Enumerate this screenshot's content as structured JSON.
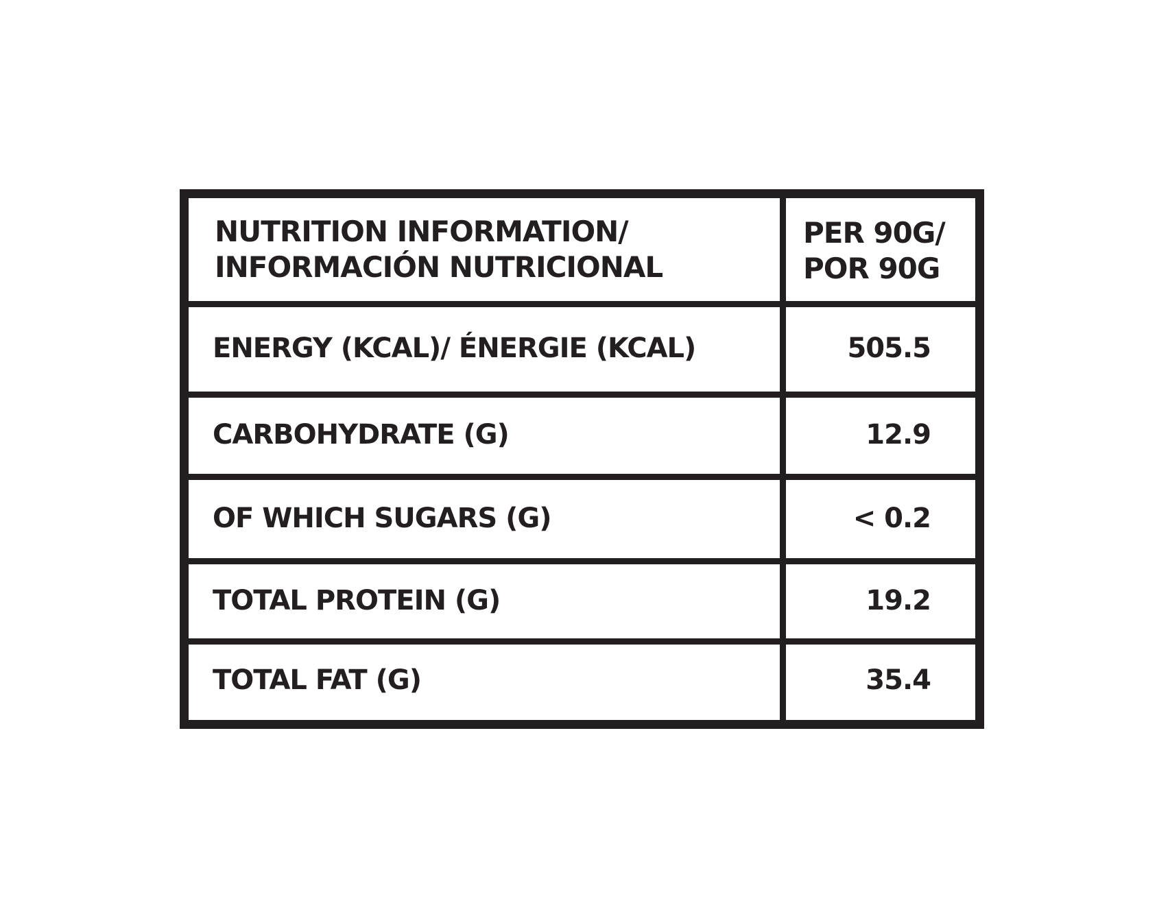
{
  "header": {
    "title": [
      "NUTRITION INFORMATION/",
      "INFORMACIÓN NUTRICIONAL"
    ],
    "unit": [
      "PER 90G/",
      "POR 90G"
    ]
  },
  "rows": [
    [
      "ENERGY (KCAL)/ ÉNERGIE (KCAL)",
      "505.5"
    ],
    [
      "CARBOHYDRATE (G)",
      "12.9"
    ],
    [
      "OF WHICH SUGARS (G)",
      "< 0.2"
    ],
    [
      "TOTAL PROTEIN (G)",
      "19.2"
    ],
    [
      "TOTAL FAT (G)",
      "35.4"
    ]
  ]
}
